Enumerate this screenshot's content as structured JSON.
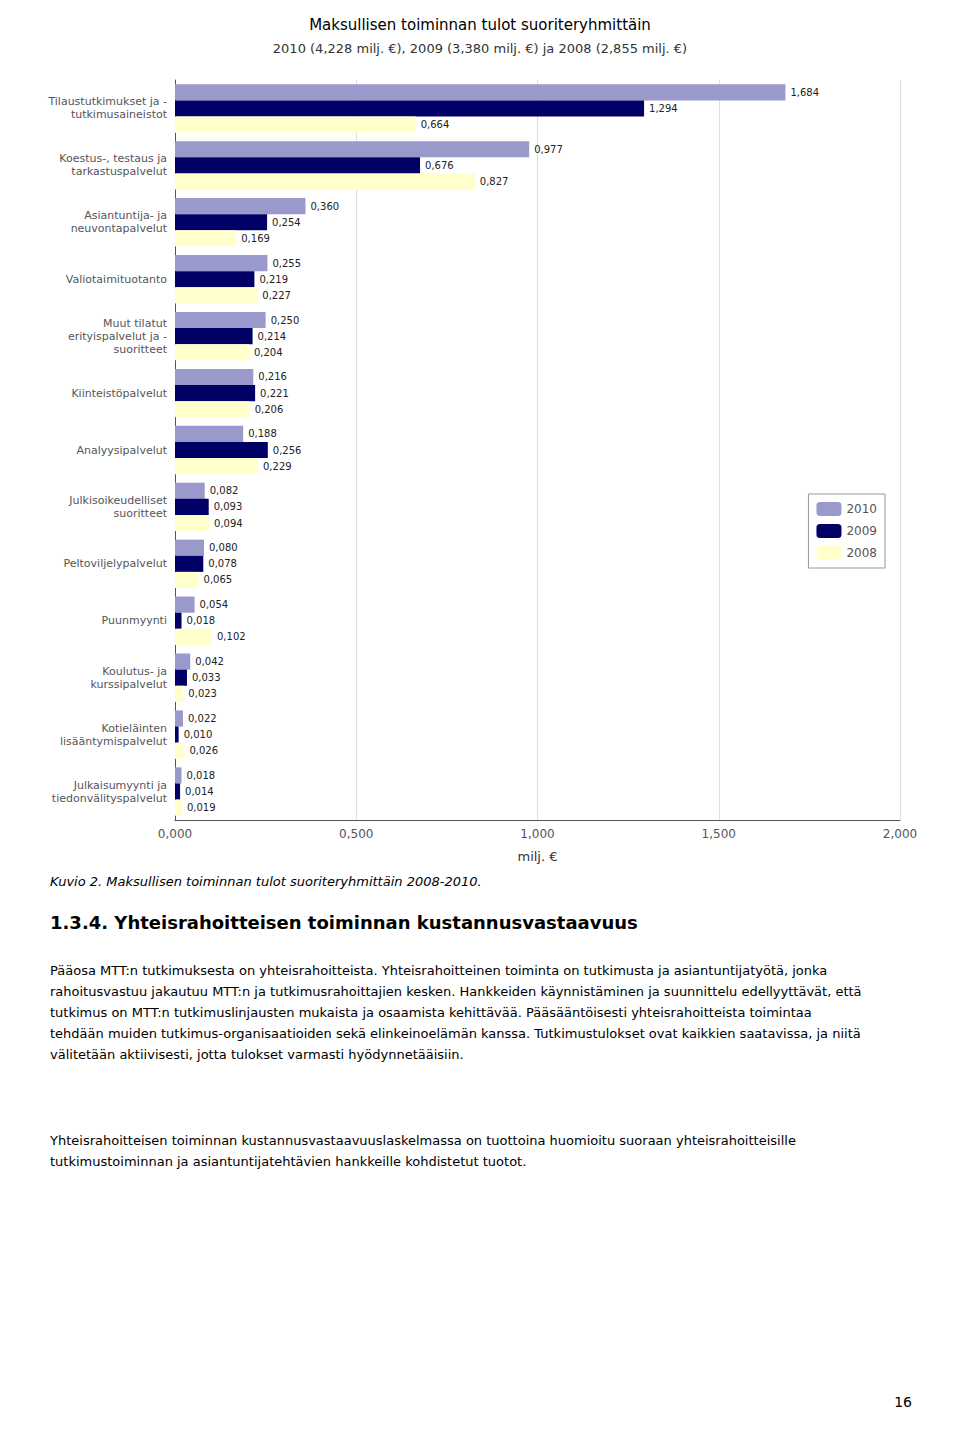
{
  "chart_data": {
    "type": "bar",
    "orientation": "horizontal",
    "title": "Maksullisen toiminnan tulot suoriteryhmittäin",
    "subtitle": "2010 (4,228 milj. €), 2009 (3,380 milj. €) ja 2008 (2,855 milj. €)",
    "categories": [
      "Tilaustutkimukset ja -\ntutkimusaineistot",
      "Koestus-, testaus ja\ntarkastuspalvelut",
      "Asiantuntija- ja\nneuvontapalvelut",
      "Valiotaimituotanto",
      "Muut tilatut\nerityispalvelut ja -\nsuoritteet",
      "Kiinteistöpalvelut",
      "Analyysipalvelut",
      "Julkisoikeudelliset\nsuoritteet",
      "Peltoviljelypalvelut",
      "Puunmyynti",
      "Koulutus- ja\nkurssipalvelut",
      "Kotieläinten\nlisääntymispalvelut",
      "Julkaisumyynti ja\ntiedonvälityspalvelut"
    ],
    "series": [
      {
        "name": "2010",
        "color": "#9999cc",
        "values": [
          1.684,
          0.977,
          0.36,
          0.255,
          0.25,
          0.216,
          0.188,
          0.082,
          0.08,
          0.054,
          0.042,
          0.022,
          0.018
        ],
        "value_labels": [
          "1,684",
          "0,977",
          "0,360",
          "0,255",
          "0,250",
          "0,216",
          "0,188",
          "0,082",
          "0,080",
          "0,054",
          "0,042",
          "0,022",
          "0,018"
        ]
      },
      {
        "name": "2009",
        "color": "#000066",
        "values": [
          1.294,
          0.676,
          0.254,
          0.219,
          0.214,
          0.221,
          0.256,
          0.093,
          0.078,
          0.018,
          0.033,
          0.01,
          0.014
        ],
        "value_labels": [
          "1,294",
          "0,676",
          "0,254",
          "0,219",
          "0,214",
          "0,221",
          "0,256",
          "0,093",
          "0,078",
          "0,018",
          "0,033",
          "0,010",
          "0,014"
        ]
      },
      {
        "name": "2008",
        "color": "#ffffcc",
        "values": [
          0.664,
          0.827,
          0.169,
          0.227,
          0.204,
          0.206,
          0.229,
          0.094,
          0.065,
          0.102,
          0.023,
          0.026,
          0.019
        ],
        "value_labels": [
          "0,664",
          "0,827",
          "0,169",
          "0,227",
          "0,204",
          "0,206",
          "0,229",
          "0,094",
          "0,065",
          "0,102",
          "0,023",
          "0,026",
          "0,019"
        ]
      }
    ],
    "xlabel": "milj. €",
    "xlim": [
      0,
      2.0
    ],
    "xticks": [
      {
        "value": 0.0,
        "label": "0,000"
      },
      {
        "value": 0.5,
        "label": "0,500"
      },
      {
        "value": 1.0,
        "label": "1,000"
      },
      {
        "value": 1.5,
        "label": "1,500"
      },
      {
        "value": 2.0,
        "label": "2,000"
      }
    ],
    "grid": true,
    "legend": "right",
    "data_labels": true,
    "annotations": [
      "Kuvio 2. Maksullisen toiminnan tulot suoriteryhmittäin 2008-2010.",
      "1.3.4. Yhteisrahoitteisen toiminnan kustannusvastaavuus",
      "Pääosa MTT:n tutkimuksesta on yhteisrahoitteista. Yhteisrahoitteinen toiminta on tutkimusta ja asiantuntijatyötä, jonka rahoitusvastuu jakautuu MTT:n ja tutkimusrahoittajien kesken. Hankkeiden käynnistäminen ja suunnittelu edellyyttävät, että tutkimus on MTT:n tutkimuslinjausten mukaista ja osaamista kehittävää. Pääsääntöisesti yhteisrahoitteista toimintaa tehdään muiden tutkimus-organisaatioiden sekä elinkeinoelämän kanssa. Tutkimustulokset ovat kaikkien saatavissa, ja niitä välitetään aktiivisesti, jotta tulokset varmasti hyödynnetääisiin.",
      "Yhteisrahoitteisen toiminnan kustannusvastaavuuslaskelmassa on tuottoina huomioitu suoraan yhteisrahoitteisille tutkimustoiminnan ja asiantuntijatehtävien hankkeille kohdistetut tuotot.",
      "16"
    ]
  }
}
